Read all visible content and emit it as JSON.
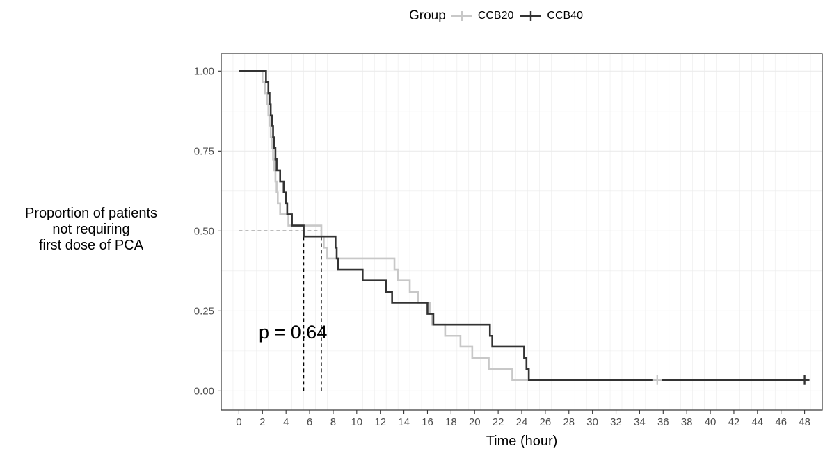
{
  "chart_data": {
    "type": "line",
    "subtype": "kaplan-meier step",
    "title": "",
    "xlabel": "Time (hour)",
    "ylabel": "Proportion of patients\nnot requiring\nfirst dose of PCA",
    "xlim": [
      -1.5,
      49.5
    ],
    "ylim": [
      -0.06,
      1.055
    ],
    "x_ticks": [
      0,
      2,
      4,
      6,
      8,
      10,
      12,
      14,
      16,
      18,
      20,
      22,
      24,
      26,
      28,
      30,
      32,
      34,
      36,
      38,
      40,
      42,
      44,
      46,
      48
    ],
    "y_ticks": [
      0.0,
      0.25,
      0.5,
      0.75,
      1.0
    ],
    "y_tick_labels": [
      "0.00",
      "0.25",
      "0.50",
      "0.75",
      "1.00"
    ],
    "grid": true,
    "legend": {
      "title": "Group",
      "position": "top"
    },
    "annotation": "p = 0.64",
    "median_line": {
      "y": 0.5,
      "x": [
        5.5,
        7.0
      ]
    },
    "series": [
      {
        "name": "CCB20",
        "color": "#c8c8c8",
        "steps": [
          [
            0,
            1.0
          ],
          [
            2.0,
            0.966
          ],
          [
            2.2,
            0.931
          ],
          [
            2.4,
            0.897
          ],
          [
            2.5,
            0.862
          ],
          [
            2.6,
            0.828
          ],
          [
            2.7,
            0.793
          ],
          [
            2.8,
            0.759
          ],
          [
            2.9,
            0.724
          ],
          [
            3.0,
            0.69
          ],
          [
            3.1,
            0.655
          ],
          [
            3.2,
            0.621
          ],
          [
            3.3,
            0.586
          ],
          [
            3.5,
            0.552
          ],
          [
            4.2,
            0.517
          ],
          [
            7.0,
            0.483
          ],
          [
            7.2,
            0.448
          ],
          [
            7.5,
            0.414
          ],
          [
            13.2,
            0.379
          ],
          [
            13.5,
            0.345
          ],
          [
            14.5,
            0.31
          ],
          [
            15.2,
            0.276
          ],
          [
            16.2,
            0.241
          ],
          [
            16.4,
            0.207
          ],
          [
            17.5,
            0.172
          ],
          [
            18.8,
            0.138
          ],
          [
            19.8,
            0.103
          ],
          [
            21.2,
            0.069
          ],
          [
            23.2,
            0.034
          ],
          [
            35.5,
            0.034
          ]
        ],
        "censored": [
          [
            35.5,
            0.034
          ]
        ]
      },
      {
        "name": "CCB40",
        "color": "#333333",
        "steps": [
          [
            0,
            1.0
          ],
          [
            2.3,
            0.966
          ],
          [
            2.5,
            0.931
          ],
          [
            2.6,
            0.897
          ],
          [
            2.7,
            0.862
          ],
          [
            2.8,
            0.828
          ],
          [
            2.9,
            0.793
          ],
          [
            3.0,
            0.759
          ],
          [
            3.1,
            0.724
          ],
          [
            3.2,
            0.69
          ],
          [
            3.5,
            0.655
          ],
          [
            3.8,
            0.621
          ],
          [
            4.0,
            0.586
          ],
          [
            4.1,
            0.552
          ],
          [
            4.5,
            0.517
          ],
          [
            5.5,
            0.483
          ],
          [
            8.2,
            0.448
          ],
          [
            8.3,
            0.414
          ],
          [
            8.4,
            0.379
          ],
          [
            10.5,
            0.345
          ],
          [
            12.5,
            0.31
          ],
          [
            13.0,
            0.276
          ],
          [
            16.0,
            0.241
          ],
          [
            16.5,
            0.207
          ],
          [
            21.3,
            0.172
          ],
          [
            21.5,
            0.138
          ],
          [
            24.2,
            0.103
          ],
          [
            24.4,
            0.069
          ],
          [
            24.6,
            0.034
          ],
          [
            48.0,
            0.034
          ]
        ],
        "censored": [
          [
            48.0,
            0.034
          ]
        ]
      }
    ]
  }
}
